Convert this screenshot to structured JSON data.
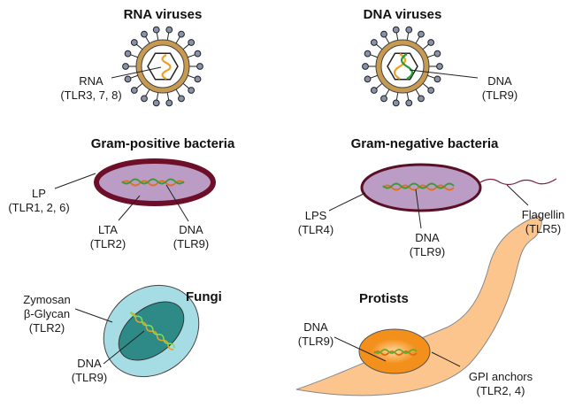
{
  "panels": {
    "rna_virus": {
      "title": "RNA viruses",
      "label_line1": "RNA",
      "label_line2": "(TLR3, 7, 8)"
    },
    "dna_virus": {
      "title": "DNA viruses",
      "label_line1": "DNA",
      "label_line2": "(TLR9)"
    },
    "gram_positive": {
      "title": "Gram-positive bacteria",
      "lp_1": "LP",
      "lp_2": "(TLR1, 2, 6)",
      "lta_1": "LTA",
      "lta_2": "(TLR2)",
      "dna_1": "DNA",
      "dna_2": "(TLR9)"
    },
    "gram_negative": {
      "title": "Gram-negative bacteria",
      "lps_1": "LPS",
      "lps_2": "(TLR4)",
      "dna_1": "DNA",
      "dna_2": "(TLR9)",
      "flagellin_1": "Flagellin",
      "flagellin_2": "(TLR5)"
    },
    "fungi": {
      "title": "Fungi",
      "zymosan_1": "Zymosan",
      "zymosan_2": "β-Glycan",
      "zymosan_3": "(TLR2)",
      "dna_1": "DNA",
      "dna_2": "(TLR9)"
    },
    "protists": {
      "title": "Protists",
      "dna_1": "DNA",
      "dna_2": "(TLR9)",
      "gpi_1": "GPI anchors",
      "gpi_2": "(TLR2, 4)"
    }
  },
  "colors": {
    "virus_capsule": "#c89a50",
    "spike_knob": "#8892a8",
    "gram_pos_wall": "#6e0f2a",
    "bacteria_fill": "#bb9cc4",
    "gram_neg_wall": "#5a0f25",
    "fungi_outer": "#a6dde5",
    "fungi_inner": "#2d8a87",
    "protist_body": "#fcc58e",
    "protist_nucleus": "#f38f1b"
  }
}
